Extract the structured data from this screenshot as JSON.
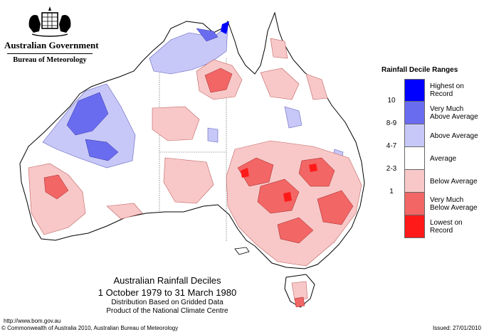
{
  "header": {
    "government": "Australian Government",
    "bureau": "Bureau of Meteorology"
  },
  "legend": {
    "title": "Rainfall Decile Ranges",
    "items": [
      {
        "range": "",
        "label": "Highest on Record",
        "color": "#0000ff"
      },
      {
        "range": "10",
        "label": "Very Much Above Average",
        "color": "#6a6cf0"
      },
      {
        "range": "8-9",
        "label": "Above Average",
        "color": "#c8c8f8"
      },
      {
        "range": "4-7",
        "label": "Average",
        "color": "#ffffff"
      },
      {
        "range": "2-3",
        "label": "Below Average",
        "color": "#f8c8c8"
      },
      {
        "range": "1",
        "label": "Very Much Below Average",
        "color": "#f26666"
      },
      {
        "range": "",
        "label": "Lowest on Record",
        "color": "#ff1a1a"
      }
    ]
  },
  "caption": {
    "title": "Australian Rainfall Deciles",
    "period": "1 October 1979 to 31 March 1980",
    "distribution": "Distribution Based on Gridded Data",
    "product": "Product of the National Climate Centre"
  },
  "footer": {
    "url": "http://www.bom.gov.au",
    "copyright": "© Commonwealth of Australia 2010, Australian Bureau of Meteorology",
    "issued": "Issued: 27/01/2010"
  }
}
